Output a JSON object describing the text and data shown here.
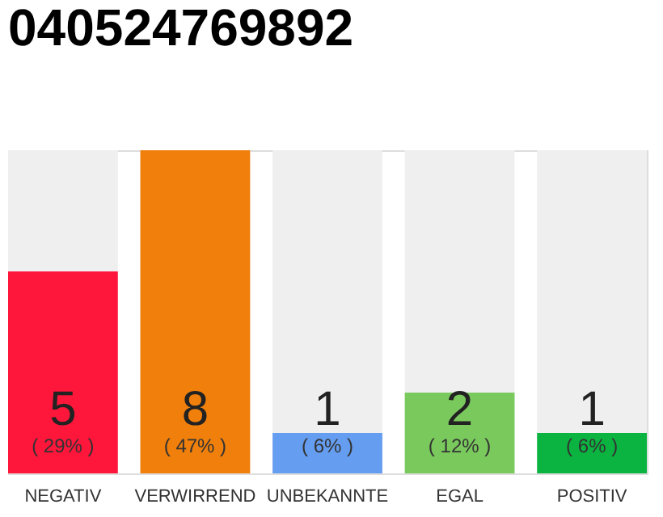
{
  "chart_data": {
    "type": "bar",
    "title": "040524769892",
    "categories": [
      "NEGATIV",
      "VERWIRREND",
      "UNBEKANNTE",
      "EGAL",
      "POSITIV"
    ],
    "values": [
      5,
      8,
      1,
      2,
      1
    ],
    "colors": [
      "#fe163b",
      "#f07f0b",
      "#659df0",
      "#7ac95d",
      "#0bb440"
    ],
    "data_labels": true,
    "annotations": [
      "( 29% )",
      "( 47% )",
      "( 6% )",
      "( 12% )",
      "( 6% )"
    ],
    "tick_labels": "x",
    "grid": false
  }
}
